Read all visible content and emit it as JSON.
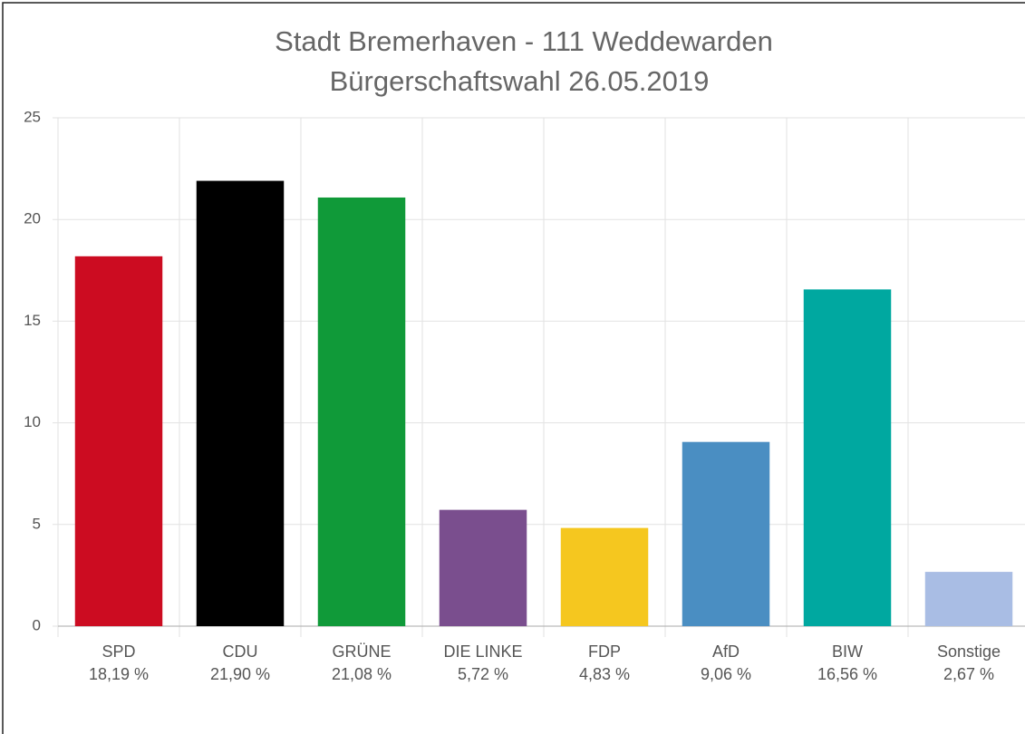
{
  "chart_data": {
    "type": "bar",
    "title": "Stadt Bremerhaven - 111 Weddewarden",
    "subtitle": "Bürgerschaftswahl 26.05.2019",
    "categories": [
      "SPD",
      "CDU",
      "GRÜNE",
      "DIE LINKE",
      "FDP",
      "AfD",
      "BIW",
      "Sonstige"
    ],
    "values": [
      18.19,
      21.9,
      21.08,
      5.72,
      4.83,
      9.06,
      16.56,
      2.67
    ],
    "value_labels": [
      "18,19 %",
      "21,90 %",
      "21,08 %",
      "5,72 %",
      "4,83 %",
      "9,06 %",
      "16,56 %",
      "2,67 %"
    ],
    "colors": [
      "#cc0c21",
      "#000000",
      "#109a39",
      "#7a4e8e",
      "#f5c71f",
      "#4a8ec2",
      "#00a8a0",
      "#a9bde4"
    ],
    "ylim": [
      0,
      25
    ],
    "yticks": [
      0,
      5,
      10,
      15,
      20,
      25
    ],
    "grid": true
  }
}
